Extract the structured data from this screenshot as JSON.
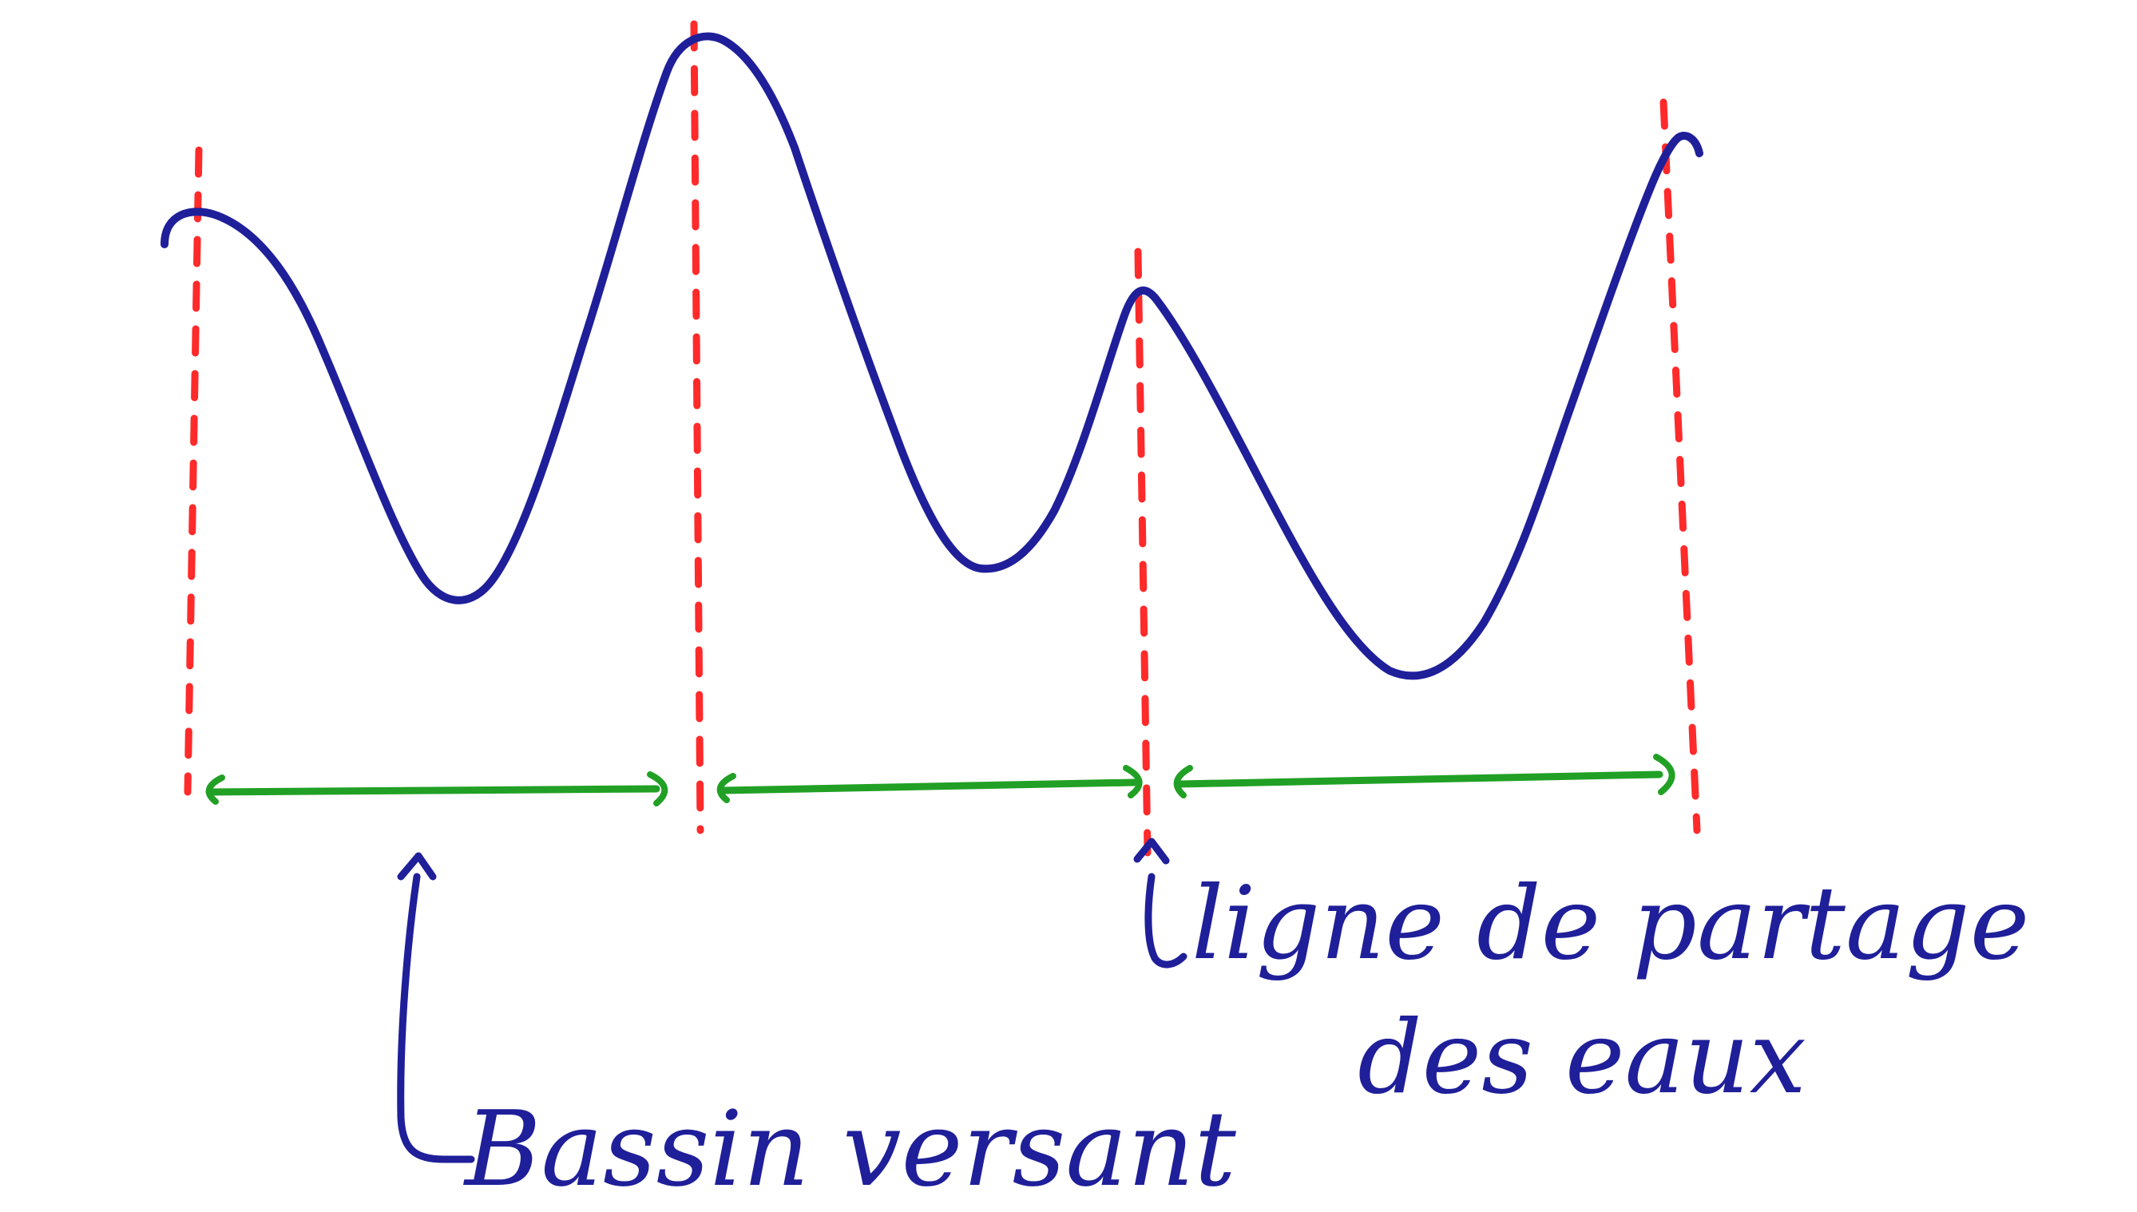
{
  "colors": {
    "profile": "#1f1f9a",
    "divides": "#ff2a2a",
    "spans": "#21a025",
    "labels": "#1f1f9a",
    "background": "#ffffff"
  },
  "labels": {
    "basin": "Bassin versant",
    "divide_line1": "ligne de partage",
    "divide_line2": "des eaux"
  }
}
